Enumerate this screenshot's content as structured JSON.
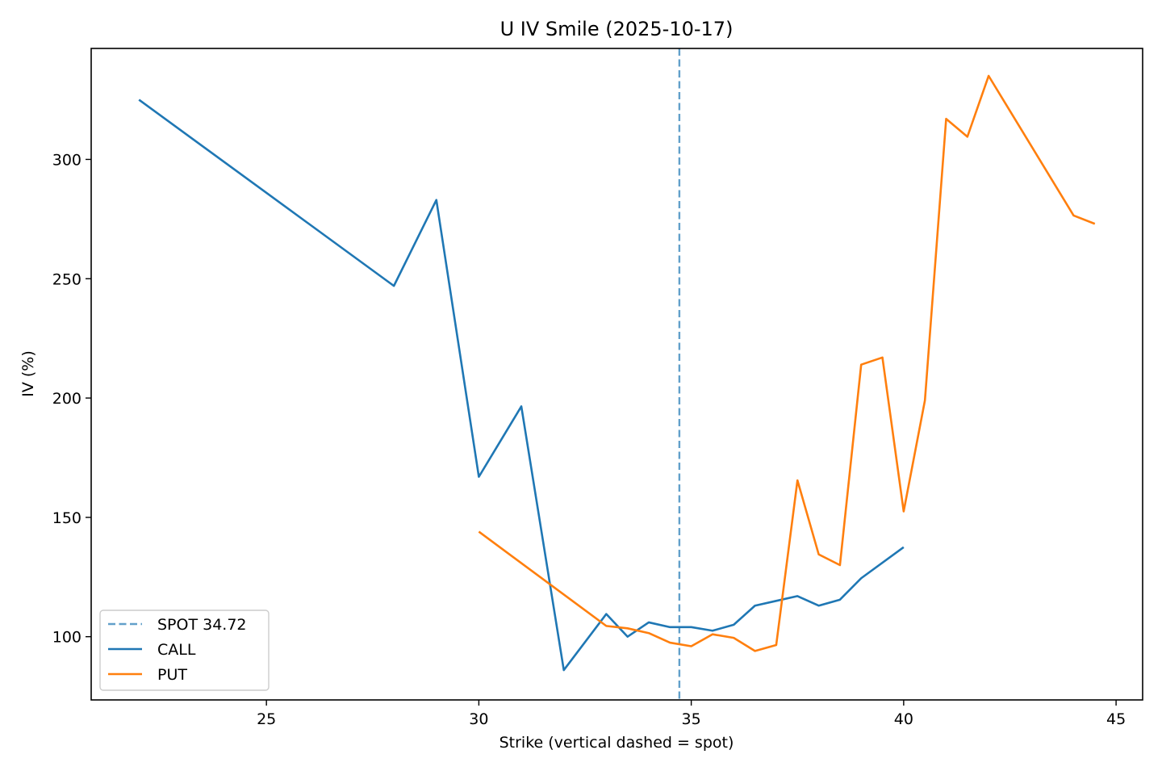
{
  "chart_data": {
    "type": "line",
    "title": "U IV Smile (2025-10-17)",
    "xlabel": "Strike (vertical dashed = spot)",
    "ylabel": "IV (%)",
    "xlim": [
      20.875,
      45.625
    ],
    "ylim": [
      73.5,
      346.5
    ],
    "xticks": [
      25,
      30,
      35,
      40,
      45
    ],
    "yticks": [
      100,
      150,
      200,
      250,
      300
    ],
    "grid": false,
    "legend_position": "lower left",
    "spot": {
      "label": "SPOT 34.72",
      "value": 34.72,
      "color": "#1f77b4"
    },
    "series": [
      {
        "name": "CALL",
        "color": "#1f77b4",
        "x": [
          22,
          28,
          29,
          30,
          31,
          32,
          33,
          33.5,
          34,
          34.5,
          35,
          35.5,
          36,
          36.5,
          37,
          37.5,
          38,
          38.5,
          39,
          40
        ],
        "y": [
          325,
          247,
          283,
          167,
          196.5,
          86,
          109.5,
          100,
          106,
          104,
          104,
          102.5,
          105,
          113,
          115,
          117,
          113,
          115.5,
          124.5,
          137.5
        ]
      },
      {
        "name": "PUT",
        "color": "#ff7f0e",
        "x": [
          30,
          33,
          33.5,
          34,
          34.5,
          35,
          35.5,
          36,
          36.5,
          37,
          37.5,
          38,
          38.5,
          39,
          39.5,
          40,
          40.5,
          41,
          41.5,
          42,
          44,
          44.5
        ],
        "y": [
          144,
          104.5,
          103.5,
          101.5,
          97.5,
          96,
          101,
          99.5,
          94,
          96.5,
          165.5,
          134.5,
          130,
          214,
          217,
          152.5,
          199,
          317,
          309.5,
          335,
          276.5,
          273
        ]
      }
    ]
  }
}
